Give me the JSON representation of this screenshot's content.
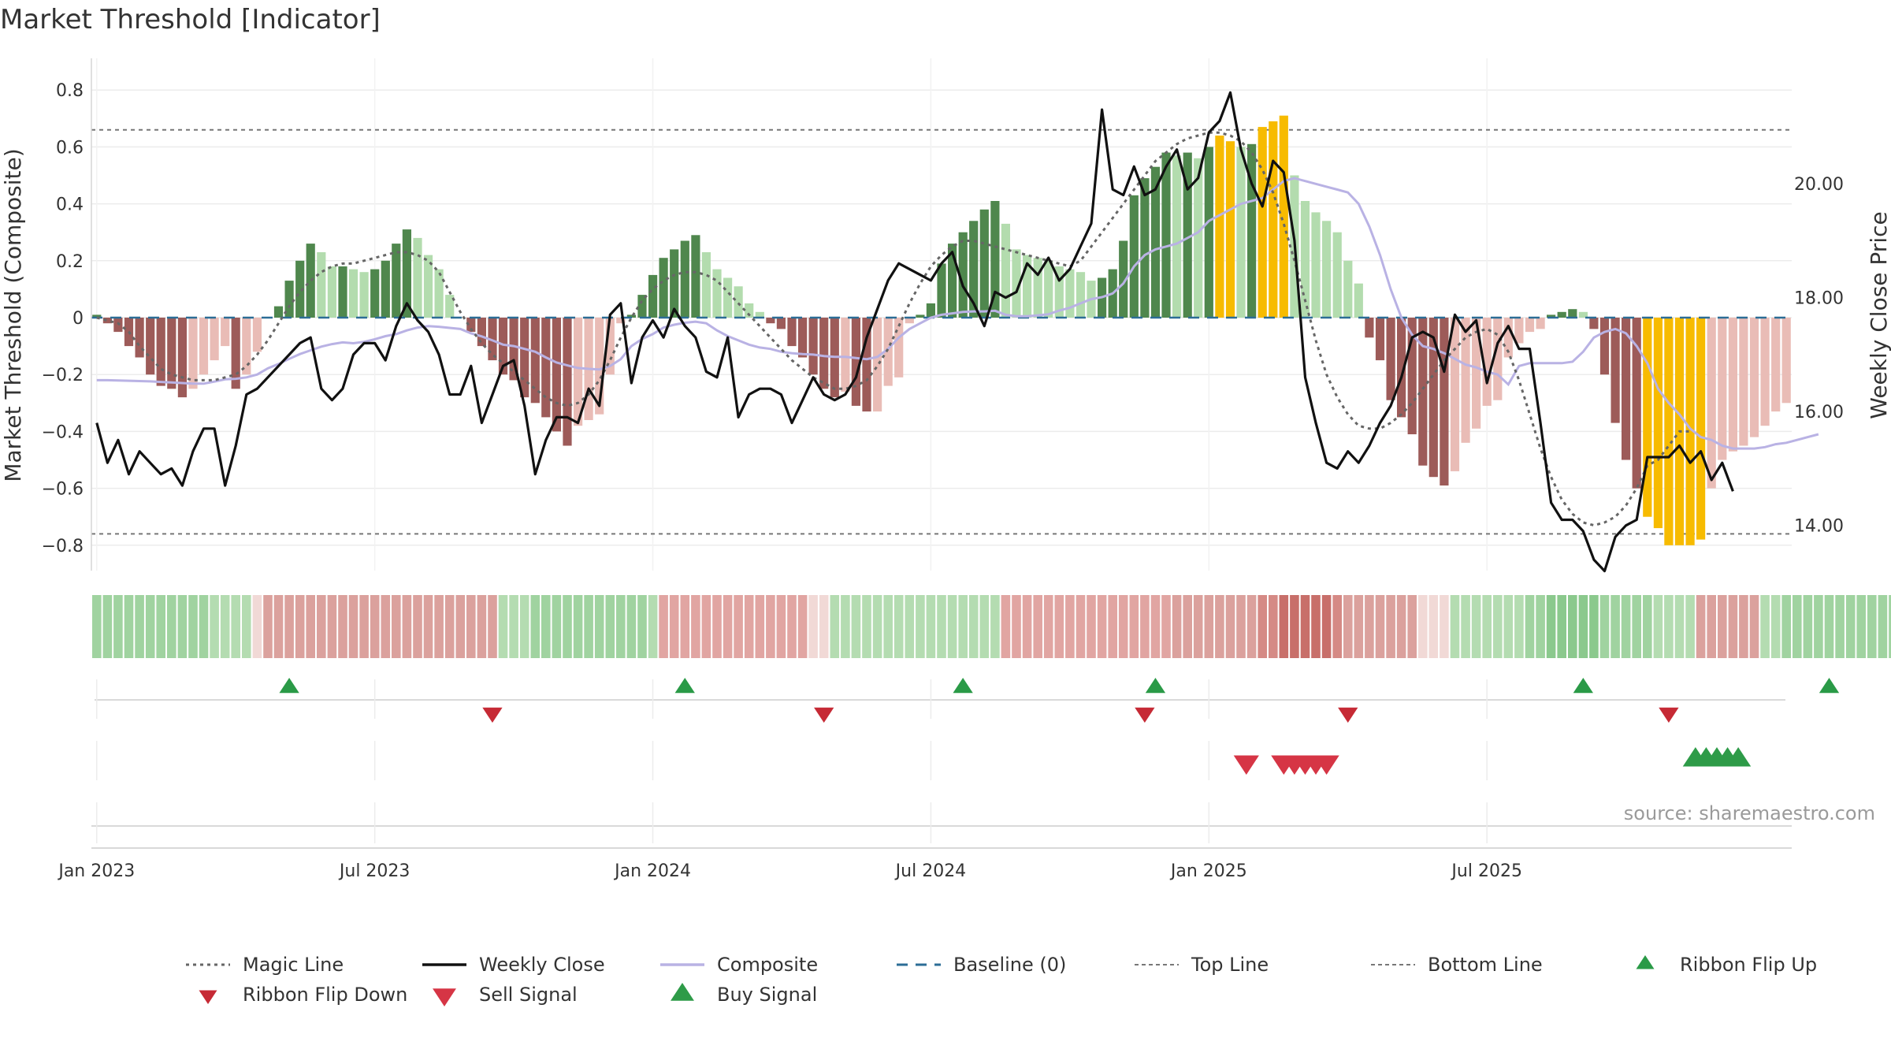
{
  "title": "Market Threshold [Indicator]",
  "source": "source: sharemaestro.com",
  "colors": {
    "green_dark": "#4f874d",
    "green_mid": "#7ab874",
    "green_light": "#b3dcae",
    "red_dark": "#9d5b59",
    "red_mid": "#c98a86",
    "red_light": "#e9bcb6",
    "gold": "#f7bb00",
    "close": "#111111",
    "composite": "#b9b2e4",
    "magic": "#666666",
    "baseline": "#2c6d96",
    "threshold": "#777777",
    "buy": "#2e9b48",
    "sell": "#d63545",
    "flip_up": "#2a9a47",
    "flip_down": "#c62a35"
  },
  "chart_data": {
    "type": "bar",
    "title": "Market Threshold [Indicator]",
    "ylabel": "Market Threshold (Composite)",
    "y2label": "Weekly Close Price",
    "ylim": [
      -0.9,
      0.9
    ],
    "y2lim": [
      13.0,
      22.2
    ],
    "yticks": [
      -0.8,
      -0.6,
      -0.4,
      -0.2,
      0,
      0.2,
      0.4,
      0.6,
      0.8
    ],
    "ytick_labels": [
      "−0.8",
      "−0.6",
      "−0.4",
      "−0.2",
      "0",
      "0.2",
      "0.4",
      "0.6",
      "0.8"
    ],
    "y2ticks": [
      14,
      16,
      18,
      20
    ],
    "y2tick_labels": [
      "14.00",
      "16.00",
      "18.00",
      "20.00"
    ],
    "x_start": "2022-12-26",
    "x_end": "2025-09-22",
    "xticks": [
      {
        "week": 0.5,
        "label": "Jan 2023"
      },
      {
        "week": 26.5,
        "label": "Jul 2023"
      },
      {
        "week": 52.5,
        "label": "Jan 2024"
      },
      {
        "week": 78.5,
        "label": "Jul 2024"
      },
      {
        "week": 104.5,
        "label": "Jan 2025"
      },
      {
        "week": 130.5,
        "label": "Jul 2025"
      }
    ],
    "top_line": 0.66,
    "bottom_line": -0.76,
    "baseline": 0,
    "composite": [
      0.01,
      -0.02,
      -0.05,
      -0.1,
      -0.14,
      -0.2,
      -0.24,
      -0.25,
      -0.28,
      -0.25,
      -0.2,
      -0.15,
      -0.1,
      -0.25,
      -0.2,
      -0.12,
      0,
      0.04,
      0.13,
      0.2,
      0.26,
      0.23,
      0.18,
      0.18,
      0.17,
      0.16,
      0.17,
      0.2,
      0.26,
      0.31,
      0.28,
      0.22,
      0.17,
      0.08,
      0,
      -0.05,
      -0.1,
      -0.15,
      -0.2,
      -0.22,
      -0.28,
      -0.3,
      -0.35,
      -0.4,
      -0.45,
      -0.38,
      -0.36,
      -0.34,
      -0.2,
      -0.02,
      0.01,
      0.08,
      0.15,
      0.21,
      0.24,
      0.27,
      0.29,
      0.23,
      0.17,
      0.14,
      0.11,
      0.05,
      0.02,
      -0.02,
      -0.04,
      -0.1,
      -0.14,
      -0.2,
      -0.25,
      -0.28,
      -0.26,
      -0.31,
      -0.33,
      -0.33,
      -0.24,
      -0.21,
      -0.02,
      0.01,
      0.05,
      0.19,
      0.26,
      0.3,
      0.34,
      0.38,
      0.41,
      0.33,
      0.24,
      0.22,
      0.21,
      0.2,
      0.18,
      0.17,
      0.16,
      0.13,
      0.14,
      0.17,
      0.27,
      0.43,
      0.49,
      0.53,
      0.58,
      0.57,
      0.58,
      0.56,
      0.6,
      0.64,
      0.62,
      0.6,
      0.61,
      0.67,
      0.69,
      0.71,
      0.5,
      0.41,
      0.37,
      0.34,
      0.3,
      0.2,
      0.12,
      -0.07,
      -0.15,
      -0.29,
      -0.35,
      -0.41,
      -0.52,
      -0.56,
      -0.59,
      -0.54,
      -0.44,
      -0.39,
      -0.31,
      -0.29,
      -0.14,
      -0.09,
      -0.05,
      -0.04,
      0.01,
      0.02,
      0.03,
      0.02,
      -0.04,
      -0.2,
      -0.37,
      -0.5,
      -0.6,
      -0.7,
      -0.74,
      -0.8,
      -0.8,
      -0.8,
      -0.78,
      -0.6,
      -0.5,
      -0.47,
      -0.45,
      -0.42,
      -0.38,
      -0.33,
      -0.3
    ],
    "composite_ma": [
      -0.22,
      -0.22,
      -0.221,
      -0.222,
      -0.223,
      -0.224,
      -0.226,
      -0.228,
      -0.23,
      -0.232,
      -0.232,
      -0.225,
      -0.217,
      -0.215,
      -0.21,
      -0.2,
      -0.178,
      -0.163,
      -0.145,
      -0.128,
      -0.115,
      -0.102,
      -0.093,
      -0.087,
      -0.09,
      -0.085,
      -0.076,
      -0.065,
      -0.058,
      -0.045,
      -0.035,
      -0.03,
      -0.032,
      -0.036,
      -0.04,
      -0.055,
      -0.066,
      -0.08,
      -0.095,
      -0.1,
      -0.11,
      -0.12,
      -0.14,
      -0.158,
      -0.168,
      -0.177,
      -0.18,
      -0.182,
      -0.17,
      -0.146,
      -0.1,
      -0.075,
      -0.058,
      -0.035,
      -0.025,
      -0.018,
      -0.014,
      -0.02,
      -0.045,
      -0.065,
      -0.08,
      -0.095,
      -0.105,
      -0.11,
      -0.12,
      -0.125,
      -0.128,
      -0.13,
      -0.135,
      -0.138,
      -0.138,
      -0.142,
      -0.146,
      -0.138,
      -0.11,
      -0.07,
      -0.04,
      -0.02,
      0,
      0.01,
      0.015,
      0.02,
      0.022,
      0.022,
      0.024,
      0.01,
      0.005,
      0.005,
      0.008,
      0.012,
      0.025,
      0.035,
      0.05,
      0.065,
      0.072,
      0.085,
      0.12,
      0.18,
      0.22,
      0.24,
      0.25,
      0.26,
      0.28,
      0.3,
      0.34,
      0.36,
      0.38,
      0.4,
      0.41,
      0.42,
      0.45,
      0.48,
      0.49,
      0.48,
      0.47,
      0.46,
      0.45,
      0.44,
      0.4,
      0.32,
      0.22,
      0.1,
      0,
      -0.06,
      -0.1,
      -0.11,
      -0.125,
      -0.145,
      -0.165,
      -0.175,
      -0.19,
      -0.2,
      -0.235,
      -0.17,
      -0.16,
      -0.16,
      -0.16,
      -0.16,
      -0.155,
      -0.12,
      -0.07,
      -0.05,
      -0.04,
      -0.055,
      -0.1,
      -0.16,
      -0.25,
      -0.3,
      -0.34,
      -0.39,
      -0.42,
      -0.43,
      -0.45,
      -0.46,
      -0.46,
      -0.46,
      -0.455,
      -0.445,
      -0.44,
      -0.43,
      -0.42,
      -0.41
    ],
    "close_axis": "right",
    "weekly_close": [
      15.8,
      15.1,
      15.5,
      14.9,
      15.3,
      15.1,
      14.9,
      15.0,
      14.7,
      15.3,
      15.7,
      15.7,
      14.7,
      15.4,
      16.3,
      16.4,
      16.6,
      16.8,
      17.0,
      17.2,
      17.3,
      16.4,
      16.2,
      16.4,
      17.0,
      17.2,
      17.2,
      16.9,
      17.5,
      17.9,
      17.6,
      17.4,
      17.0,
      16.3,
      16.3,
      16.8,
      15.8,
      16.3,
      16.8,
      16.9,
      16.1,
      14.9,
      15.5,
      15.9,
      15.9,
      15.8,
      16.4,
      16.1,
      17.7,
      17.9,
      16.5,
      17.3,
      17.6,
      17.3,
      17.8,
      17.5,
      17.3,
      16.7,
      16.6,
      17.3,
      15.9,
      16.3,
      16.4,
      16.4,
      16.3,
      15.8,
      16.2,
      16.6,
      16.3,
      16.2,
      16.3,
      16.6,
      17.3,
      17.8,
      18.3,
      18.6,
      18.5,
      18.4,
      18.3,
      18.6,
      18.8,
      18.2,
      17.9,
      17.5,
      18.1,
      18.0,
      18.1,
      18.6,
      18.4,
      18.7,
      18.3,
      18.5,
      18.9,
      19.3,
      21.3,
      19.9,
      19.8,
      20.3,
      19.8,
      19.9,
      20.3,
      20.6,
      19.9,
      20.1,
      20.9,
      21.1,
      21.6,
      20.6,
      20.0,
      19.6,
      20.4,
      20.2,
      19.0,
      16.6,
      15.8,
      15.1,
      15.0,
      15.3,
      15.1,
      15.4,
      15.8,
      16.1,
      16.6,
      17.3,
      17.4,
      17.3,
      16.7,
      17.7,
      17.4,
      17.6,
      16.5,
      17.2,
      17.5,
      17.1,
      17.1,
      15.8,
      14.4,
      14.1,
      14.1,
      13.9,
      13.4,
      13.2,
      13.8,
      14.0,
      14.1,
      15.2,
      15.2,
      15.2,
      15.4,
      15.1,
      15.3,
      14.8,
      15.1,
      14.6
    ],
    "magic_line": [
      0,
      -0.01,
      -0.02,
      -0.05,
      -0.1,
      -0.14,
      -0.18,
      -0.2,
      -0.21,
      -0.22,
      -0.22,
      -0.22,
      -0.21,
      -0.2,
      -0.17,
      -0.13,
      -0.08,
      -0.02,
      0.04,
      0.09,
      0.13,
      0.16,
      0.18,
      0.19,
      0.19,
      0.2,
      0.21,
      0.22,
      0.23,
      0.23,
      0.22,
      0.2,
      0.16,
      0.09,
      0.02,
      -0.04,
      -0.09,
      -0.13,
      -0.16,
      -0.19,
      -0.22,
      -0.25,
      -0.28,
      -0.3,
      -0.31,
      -0.3,
      -0.27,
      -0.22,
      -0.15,
      -0.07,
      0,
      0.06,
      0.1,
      0.13,
      0.15,
      0.16,
      0.16,
      0.15,
      0.13,
      0.09,
      0.05,
      0.01,
      -0.03,
      -0.07,
      -0.11,
      -0.15,
      -0.18,
      -0.21,
      -0.23,
      -0.25,
      -0.25,
      -0.24,
      -0.22,
      -0.17,
      -0.11,
      -0.03,
      0.05,
      0.12,
      0.18,
      0.22,
      0.25,
      0.27,
      0.27,
      0.26,
      0.25,
      0.24,
      0.23,
      0.22,
      0.21,
      0.2,
      0.19,
      0.18,
      0.2,
      0.25,
      0.3,
      0.35,
      0.4,
      0.45,
      0.5,
      0.55,
      0.58,
      0.61,
      0.63,
      0.64,
      0.65,
      0.65,
      0.64,
      0.62,
      0.58,
      0.52,
      0.44,
      0.33,
      0.2,
      0.06,
      -0.08,
      -0.2,
      -0.28,
      -0.34,
      -0.38,
      -0.39,
      -0.39,
      -0.37,
      -0.34,
      -0.3,
      -0.25,
      -0.2,
      -0.15,
      -0.11,
      -0.07,
      -0.05,
      -0.04,
      -0.06,
      -0.12,
      -0.22,
      -0.34,
      -0.46,
      -0.56,
      -0.64,
      -0.69,
      -0.72,
      -0.73,
      -0.72,
      -0.7,
      -0.66,
      -0.6,
      -0.52,
      -0.5,
      -0.45,
      -0.4,
      -0.4
    ],
    "ribbon_shades": [
      2,
      2,
      2,
      2,
      2,
      2,
      2,
      2,
      2,
      2,
      2,
      1,
      1,
      1,
      1,
      0,
      -4,
      -4,
      -4,
      -4,
      -4,
      -4,
      -4,
      -4,
      -4,
      -4,
      -4,
      -4,
      -4,
      -4,
      -4,
      -4,
      -4,
      -4,
      -4,
      -4,
      -4,
      -4,
      1,
      1,
      1,
      2,
      2,
      2,
      2,
      2,
      2,
      2,
      2,
      2,
      2,
      2,
      1,
      -5,
      -5,
      -5,
      -5,
      -5,
      -5,
      -5,
      -5,
      -5,
      -5,
      -5,
      -5,
      -5,
      -5,
      0,
      0,
      1,
      1,
      1,
      1,
      1,
      1,
      1,
      1,
      1,
      1,
      1,
      1,
      1,
      1,
      1,
      1,
      -5,
      -5,
      -5,
      -5,
      -5,
      -5,
      -5,
      -5,
      -5,
      -5,
      -5,
      -5,
      -5,
      -5,
      -5,
      -5,
      -4,
      -4,
      -4,
      -4,
      -4,
      -4,
      -4,
      -4,
      -4,
      -4,
      -4,
      -4,
      -4,
      -4,
      -4,
      -4,
      -4,
      -4,
      -4,
      -4,
      -4,
      -4,
      -4,
      0,
      0,
      0,
      1,
      1,
      1,
      1,
      1,
      1,
      1,
      2,
      2,
      3,
      3,
      3,
      3,
      3,
      2,
      2,
      2,
      2,
      2,
      1,
      1,
      1,
      1,
      -4,
      -4,
      -4,
      -4,
      -4,
      -4,
      1,
      1,
      2,
      2,
      2,
      2,
      2,
      2,
      2,
      2,
      2,
      2,
      2,
      -3
    ],
    "ribbon_flip_up": [
      18.5,
      55.5,
      81.5,
      99.5,
      139.5,
      162.5
    ],
    "ribbon_flip_down": [
      37.5,
      68.5,
      98.5,
      117.5,
      147.5
    ],
    "sell_signal": [
      108,
      111.5,
      112.5,
      113.5,
      114.5,
      115.5
    ],
    "buy_signal": [
      150,
      151,
      152,
      153,
      154
    ],
    "legend": [
      "Magic Line",
      "Weekly Close",
      "Composite",
      "Baseline (0)",
      "Top Line",
      "Bottom Line",
      "Ribbon Flip Up",
      "Ribbon Flip Down",
      "Sell Signal",
      "Buy Signal"
    ]
  }
}
